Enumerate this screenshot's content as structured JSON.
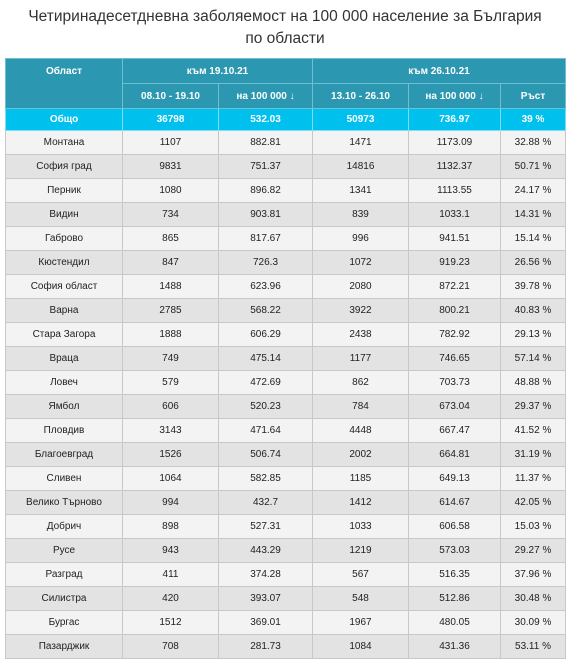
{
  "title": "Четиринадесетдневна заболяемост на 100 000 население за България по области",
  "table": {
    "group_header": [
      "Област",
      "към 19.10.21",
      "към 26.10.21"
    ],
    "sub_header": [
      "08.10 - 19.10",
      "на 100 000 ↓",
      "13.10 - 26.10",
      "на 100 000 ↓",
      "Ръст"
    ],
    "total": [
      "Общо",
      "36798",
      "532.03",
      "50973",
      "736.97",
      "39 %"
    ],
    "rows": [
      [
        "Монтана",
        "1107",
        "882.81",
        "1471",
        "1173.09",
        "32.88 %"
      ],
      [
        "София град",
        "9831",
        "751.37",
        "14816",
        "1132.37",
        "50.71 %"
      ],
      [
        "Перник",
        "1080",
        "896.82",
        "1341",
        "1113.55",
        "24.17 %"
      ],
      [
        "Видин",
        "734",
        "903.81",
        "839",
        "1033.1",
        "14.31 %"
      ],
      [
        "Габрово",
        "865",
        "817.67",
        "996",
        "941.51",
        "15.14 %"
      ],
      [
        "Кюстендил",
        "847",
        "726.3",
        "1072",
        "919.23",
        "26.56 %"
      ],
      [
        "София област",
        "1488",
        "623.96",
        "2080",
        "872.21",
        "39.78 %"
      ],
      [
        "Варна",
        "2785",
        "568.22",
        "3922",
        "800.21",
        "40.83 %"
      ],
      [
        "Стара Загора",
        "1888",
        "606.29",
        "2438",
        "782.92",
        "29.13 %"
      ],
      [
        "Враца",
        "749",
        "475.14",
        "1177",
        "746.65",
        "57.14 %"
      ],
      [
        "Ловеч",
        "579",
        "472.69",
        "862",
        "703.73",
        "48.88 %"
      ],
      [
        "Ямбол",
        "606",
        "520.23",
        "784",
        "673.04",
        "29.37 %"
      ],
      [
        "Пловдив",
        "3143",
        "471.64",
        "4448",
        "667.47",
        "41.52 %"
      ],
      [
        "Благоевград",
        "1526",
        "506.74",
        "2002",
        "664.81",
        "31.19 %"
      ],
      [
        "Сливен",
        "1064",
        "582.85",
        "1185",
        "649.13",
        "11.37 %"
      ],
      [
        "Велико Търново",
        "994",
        "432.7",
        "1412",
        "614.67",
        "42.05 %"
      ],
      [
        "Добрич",
        "898",
        "527.31",
        "1033",
        "606.58",
        "15.03 %"
      ],
      [
        "Русе",
        "943",
        "443.29",
        "1219",
        "573.03",
        "29.27 %"
      ],
      [
        "Разград",
        "411",
        "374.28",
        "567",
        "516.35",
        "37.96 %"
      ],
      [
        "Силистра",
        "420",
        "393.07",
        "548",
        "512.86",
        "30.48 %"
      ],
      [
        "Бургас",
        "1512",
        "369.01",
        "1967",
        "480.05",
        "30.09 %"
      ],
      [
        "Пазарджик",
        "708",
        "281.73",
        "1084",
        "431.36",
        "53.11 %"
      ]
    ]
  }
}
